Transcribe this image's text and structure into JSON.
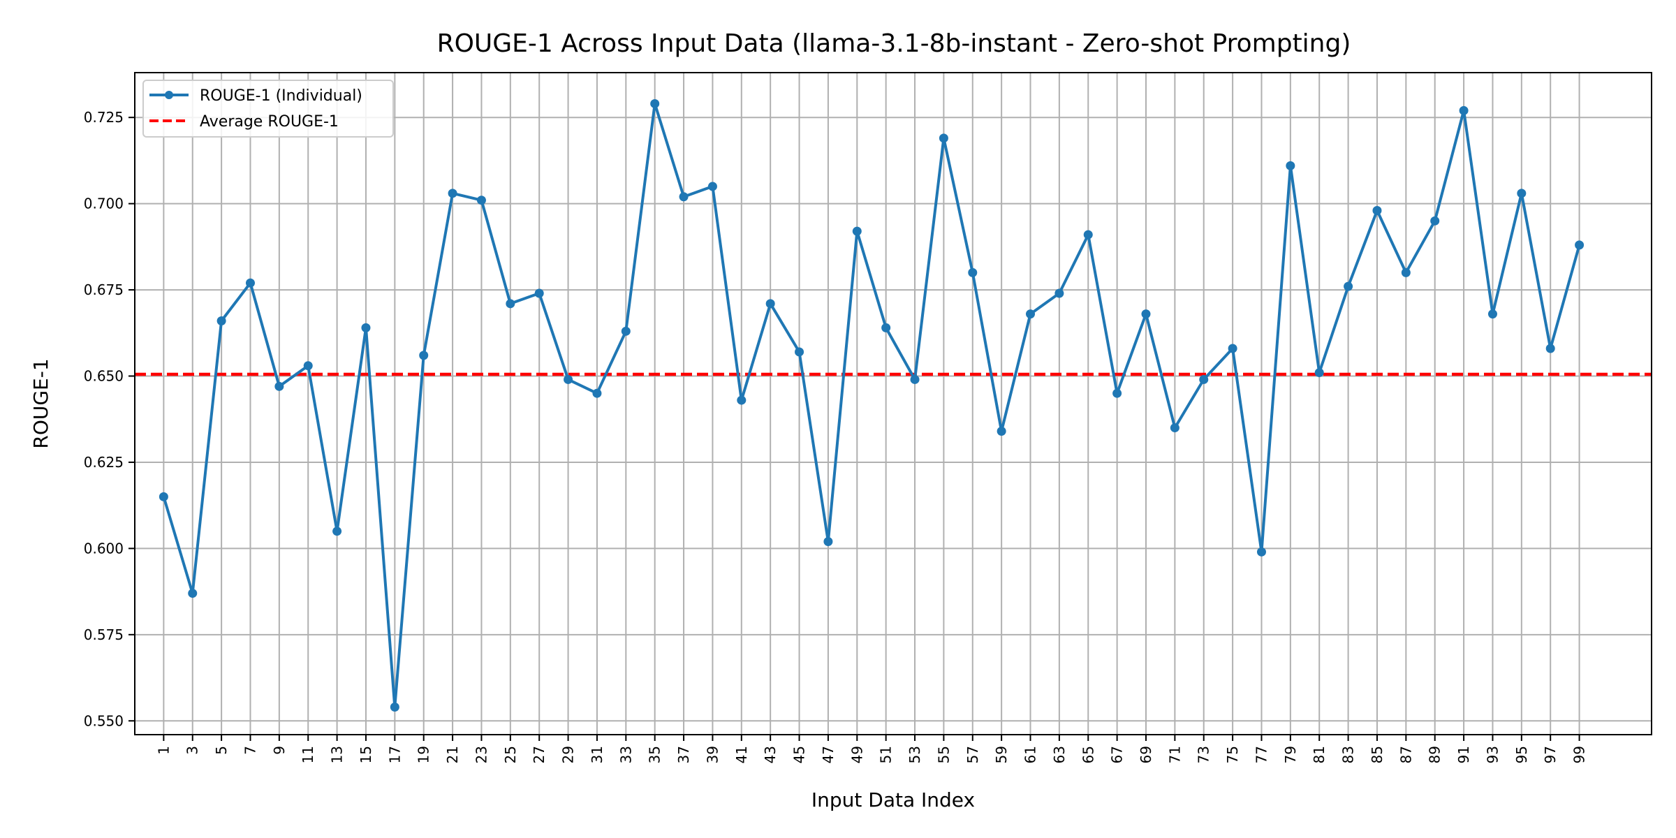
{
  "chart_data": {
    "type": "line",
    "title": "ROUGE-1 Across Input Data (llama-3.1-8b-instant - Zero-shot Prompting)",
    "xlabel": "Input Data Index",
    "ylabel": "ROUGE-1",
    "xlim": [
      -1,
      104
    ],
    "ylim": [
      0.546,
      0.738
    ],
    "x_ticks": [
      1,
      3,
      5,
      7,
      9,
      11,
      13,
      15,
      17,
      19,
      21,
      23,
      25,
      27,
      29,
      31,
      33,
      35,
      37,
      39,
      41,
      43,
      45,
      47,
      49,
      51,
      53,
      55,
      57,
      59,
      61,
      63,
      65,
      67,
      69,
      71,
      73,
      75,
      77,
      79,
      81,
      83,
      85,
      87,
      89,
      91,
      93,
      95,
      97,
      99
    ],
    "y_ticks": [
      0.55,
      0.575,
      0.6,
      0.625,
      0.65,
      0.675,
      0.7,
      0.725
    ],
    "y_tick_labels": [
      "0.550",
      "0.575",
      "0.600",
      "0.625",
      "0.650",
      "0.675",
      "0.700",
      "0.725"
    ],
    "grid": true,
    "legend_position": "top-left",
    "series": [
      {
        "name": "ROUGE-1 (Individual)",
        "color": "#1f77b4",
        "style": "solid-with-markers",
        "x": [
          1,
          3,
          5,
          7,
          9,
          11,
          13,
          15,
          17,
          19,
          21,
          23,
          25,
          27,
          29,
          31,
          33,
          35,
          37,
          39,
          41,
          43,
          45,
          47,
          49,
          51,
          53,
          55,
          57,
          59,
          61,
          63,
          65,
          67,
          69,
          71,
          73,
          75,
          77,
          79,
          81,
          83,
          85,
          87,
          89,
          91,
          93,
          95,
          97,
          99
        ],
        "values": [
          0.615,
          0.587,
          0.666,
          0.677,
          0.647,
          0.653,
          0.605,
          0.664,
          0.554,
          0.656,
          0.703,
          0.701,
          0.671,
          0.674,
          0.649,
          0.645,
          0.663,
          0.729,
          0.702,
          0.705,
          0.643,
          0.671,
          0.657,
          0.602,
          0.692,
          0.664,
          0.649,
          0.719,
          0.68,
          0.634,
          0.668,
          0.674,
          0.691,
          0.645,
          0.668,
          0.635,
          0.649,
          0.658,
          0.599,
          0.711,
          0.651,
          0.676,
          0.698,
          0.68,
          0.695,
          0.727,
          0.668,
          0.703,
          0.658,
          0.688
        ]
      }
    ],
    "average": {
      "name": "Average ROUGE-1",
      "value": 0.6505,
      "color": "#ff0000",
      "style": "dashed"
    }
  }
}
